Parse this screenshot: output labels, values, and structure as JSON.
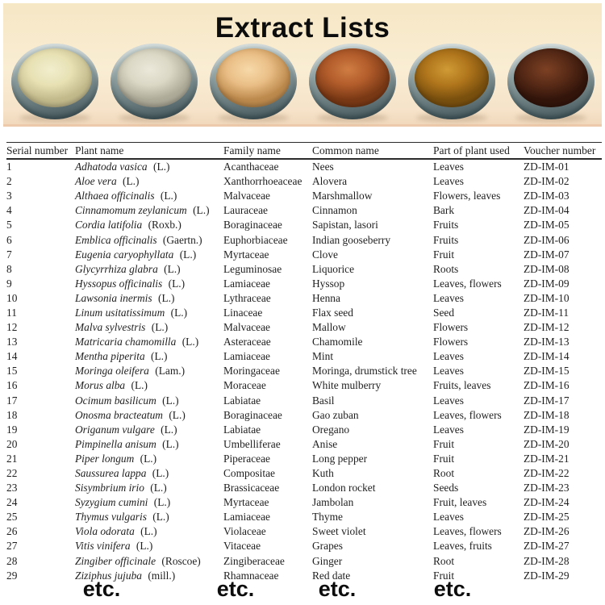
{
  "page": {
    "title": "Extract Lists"
  },
  "photo": {
    "background_color": "#f8ebd0",
    "dish_rim_color": "#5d6f72",
    "bowls": [
      {
        "name": "pale-yellow-extract-powder",
        "highlight": "#f2eecd",
        "base": "#e7e1b4",
        "dark": "#c3ba8c"
      },
      {
        "name": "off-white-extract-powder",
        "highlight": "#ebe8da",
        "base": "#dcd8c6",
        "dark": "#aeab99"
      },
      {
        "name": "tan-extract-powder",
        "highlight": "#f7d9a9",
        "base": "#eabf87",
        "dark": "#bd8a4d"
      },
      {
        "name": "terracotta-extract-powder",
        "highlight": "#d07d43",
        "base": "#b25c2b",
        "dark": "#7a3915"
      },
      {
        "name": "ochre-extract-powder",
        "highlight": "#d09b36",
        "base": "#b1761c",
        "dark": "#7a500e"
      },
      {
        "name": "dark-brown-extract-powder",
        "highlight": "#7d4124",
        "base": "#592b17",
        "dark": "#33150b"
      }
    ]
  },
  "table": {
    "headers": [
      "Serial number",
      "Plant name",
      "Family name",
      "Common name",
      "Part of plant used",
      "Voucher number"
    ],
    "rows": [
      {
        "serial": "1",
        "plant": "Adhatoda vasica",
        "authority": "(L.)",
        "family": "Acanthaceae",
        "common": "Nees",
        "part": "Leaves",
        "voucher": "ZD-IM-01"
      },
      {
        "serial": "2",
        "plant": "Aloe vera",
        "authority": "(L.)",
        "family": "Xanthorrhoeaceae",
        "common": "Alovera",
        "part": "Leaves",
        "voucher": "ZD-IM-02"
      },
      {
        "serial": "3",
        "plant": "Althaea officinalis",
        "authority": "(L.)",
        "family": "Malvaceae",
        "common": "Marshmallow",
        "part": "Flowers, leaves",
        "voucher": "ZD-IM-03"
      },
      {
        "serial": "4",
        "plant": "Cinnamomum zeylanicum",
        "authority": "(L.)",
        "family": "Lauraceae",
        "common": "Cinnamon",
        "part": "Bark",
        "voucher": "ZD-IM-04"
      },
      {
        "serial": "5",
        "plant": "Cordia latifolia",
        "authority": "(Roxb.)",
        "family": "Boraginaceae",
        "common": "Sapistan, lasori",
        "part": "Fruits",
        "voucher": "ZD-IM-05"
      },
      {
        "serial": "6",
        "plant": "Emblica officinalis",
        "authority": "(Gaertn.)",
        "family": "Euphorbiaceae",
        "common": "Indian gooseberry",
        "part": "Fruits",
        "voucher": "ZD-IM-06"
      },
      {
        "serial": "7",
        "plant": "Eugenia caryophyllata",
        "authority": "(L.)",
        "family": "Myrtaceae",
        "common": "Clove",
        "part": "Fruit",
        "voucher": "ZD-IM-07"
      },
      {
        "serial": "8",
        "plant": "Glycyrrhiza glabra",
        "authority": "(L.)",
        "family": "Leguminosae",
        "common": "Liquorice",
        "part": "Roots",
        "voucher": "ZD-IM-08"
      },
      {
        "serial": "9",
        "plant": "Hyssopus officinalis",
        "authority": "(L.)",
        "family": "Lamiaceae",
        "common": "Hyssop",
        "part": "Leaves, flowers",
        "voucher": "ZD-IM-09"
      },
      {
        "serial": "10",
        "plant": "Lawsonia inermis",
        "authority": "(L.)",
        "family": "Lythraceae",
        "common": "Henna",
        "part": "Leaves",
        "voucher": "ZD-IM-10"
      },
      {
        "serial": "11",
        "plant": "Linum usitatissimum",
        "authority": "(L.)",
        "family": "Linaceae",
        "common": "Flax seed",
        "part": "Seed",
        "voucher": "ZD-IM-11"
      },
      {
        "serial": "12",
        "plant": "Malva sylvestris",
        "authority": "(L.)",
        "family": "Malvaceae",
        "common": "Mallow",
        "part": "Flowers",
        "voucher": "ZD-IM-12"
      },
      {
        "serial": "13",
        "plant": "Matricaria chamomilla",
        "authority": "(L.)",
        "family": "Asteraceae",
        "common": "Chamomile",
        "part": "Flowers",
        "voucher": "ZD-IM-13"
      },
      {
        "serial": "14",
        "plant": "Mentha piperita",
        "authority": "(L.)",
        "family": "Lamiaceae",
        "common": "Mint",
        "part": "Leaves",
        "voucher": "ZD-IM-14"
      },
      {
        "serial": "15",
        "plant": "Moringa oleifera",
        "authority": "(Lam.)",
        "family": "Moringaceae",
        "common": "Moringa, drumstick tree",
        "part": "Leaves",
        "voucher": "ZD-IM-15"
      },
      {
        "serial": "16",
        "plant": "Morus alba",
        "authority": "(L.)",
        "family": "Moraceae",
        "common": "White mulberry",
        "part": "Fruits, leaves",
        "voucher": "ZD-IM-16"
      },
      {
        "serial": "17",
        "plant": "Ocimum basilicum",
        "authority": "(L.)",
        "family": "Labiatae",
        "common": "Basil",
        "part": "Leaves",
        "voucher": "ZD-IM-17"
      },
      {
        "serial": "18",
        "plant": "Onosma bracteatum",
        "authority": "(L.)",
        "family": "Boraginaceae",
        "common": "Gao zuban",
        "part": "Leaves, flowers",
        "voucher": "ZD-IM-18"
      },
      {
        "serial": "19",
        "plant": "Origanum vulgare",
        "authority": "(L.)",
        "family": "Labiatae",
        "common": "Oregano",
        "part": "Leaves",
        "voucher": "ZD-IM-19"
      },
      {
        "serial": "20",
        "plant": "Pimpinella anisum",
        "authority": "(L.)",
        "family": "Umbelliferae",
        "common": "Anise",
        "part": "Fruit",
        "voucher": "ZD-IM-20"
      },
      {
        "serial": "21",
        "plant": "Piper longum",
        "authority": "(L.)",
        "family": "Piperaceae",
        "common": "Long pepper",
        "part": "Fruit",
        "voucher": "ZD-IM-21"
      },
      {
        "serial": "22",
        "plant": "Saussurea lappa",
        "authority": "(L.)",
        "family": "Compositae",
        "common": "Kuth",
        "part": "Root",
        "voucher": "ZD-IM-22"
      },
      {
        "serial": "23",
        "plant": "Sisymbrium irio",
        "authority": "(L.)",
        "family": "Brassicaceae",
        "common": "London rocket",
        "part": "Seeds",
        "voucher": "ZD-IM-23"
      },
      {
        "serial": "24",
        "plant": "Syzygium cumini",
        "authority": "(L.)",
        "family": "Myrtaceae",
        "common": "Jambolan",
        "part": "Fruit, leaves",
        "voucher": "ZD-IM-24"
      },
      {
        "serial": "25",
        "plant": "Thymus vulgaris",
        "authority": "(L.)",
        "family": "Lamiaceae",
        "common": "Thyme",
        "part": "Leaves",
        "voucher": "ZD-IM-25"
      },
      {
        "serial": "26",
        "plant": "Viola odorata",
        "authority": "(L.)",
        "family": "Violaceae",
        "common": "Sweet violet",
        "part": "Leaves, flowers",
        "voucher": "ZD-IM-26"
      },
      {
        "serial": "27",
        "plant": "Vitis vinifera",
        "authority": "(L.)",
        "family": "Vitaceae",
        "common": "Grapes",
        "part": "Leaves, fruits",
        "voucher": "ZD-IM-27"
      },
      {
        "serial": "28",
        "plant": "Zingiber officinale",
        "authority": "(Roscoe)",
        "family": "Zingiberaceae",
        "common": "Ginger",
        "part": "Root",
        "voucher": "ZD-IM-28"
      },
      {
        "serial": "29",
        "plant": "Ziziphus jujuba",
        "authority": "(mill.)",
        "family": "Rhamnaceae",
        "common": "Red date",
        "part": "Fruit",
        "voucher": "ZD-IM-29"
      }
    ]
  },
  "footer": {
    "etc_labels": [
      "etc.",
      "etc.",
      "etc.",
      "etc."
    ]
  }
}
